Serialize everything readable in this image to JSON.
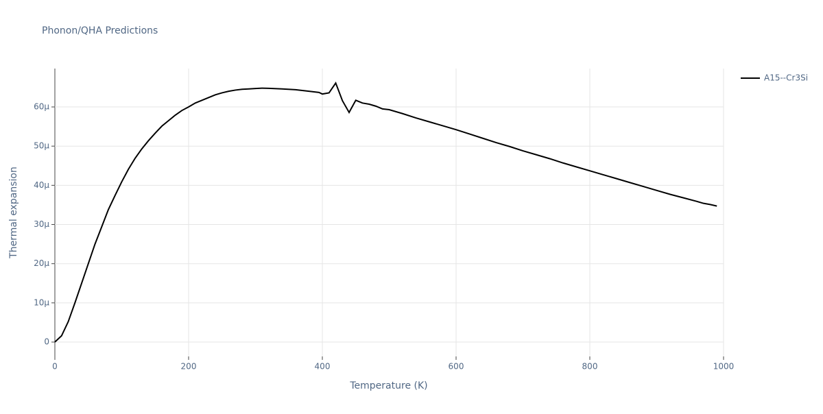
{
  "chart_data": {
    "type": "line",
    "title": "Phonon/QHA Predictions",
    "x_label": "Temperature (K)",
    "y_label": "Thermal expansion",
    "x": [
      0,
      10,
      20,
      30,
      40,
      50,
      60,
      70,
      80,
      90,
      100,
      110,
      120,
      130,
      140,
      150,
      160,
      170,
      180,
      190,
      200,
      210,
      220,
      230,
      240,
      250,
      260,
      270,
      280,
      290,
      300,
      310,
      320,
      340,
      360,
      380,
      395,
      400,
      410,
      420,
      430,
      440,
      450,
      460,
      470,
      480,
      490,
      500,
      520,
      540,
      560,
      580,
      600,
      620,
      640,
      660,
      680,
      700,
      720,
      740,
      760,
      780,
      800,
      820,
      840,
      860,
      880,
      900,
      920,
      940,
      960,
      970,
      980,
      990
    ],
    "series": [
      {
        "name": "A15--Cr3Si",
        "color": "#000000",
        "values": [
          0,
          1.6e-06,
          5.2e-06,
          1e-05,
          1.5e-05,
          2e-05,
          2.5e-05,
          2.94e-05,
          3.38e-05,
          3.74e-05,
          4.09e-05,
          4.41e-05,
          4.69e-05,
          4.93e-05,
          5.14e-05,
          5.33e-05,
          5.51e-05,
          5.65e-05,
          5.79e-05,
          5.91e-05,
          6e-05,
          6.1e-05,
          6.17e-05,
          6.24e-05,
          6.31e-05,
          6.36e-05,
          6.4e-05,
          6.43e-05,
          6.45e-05,
          6.46e-05,
          6.47e-05,
          6.48e-05,
          6.475e-05,
          6.46e-05,
          6.44e-05,
          6.4e-05,
          6.37e-05,
          6.33e-05,
          6.36e-05,
          6.61e-05,
          6.16e-05,
          5.86e-05,
          6.17e-05,
          6.1e-05,
          6.07e-05,
          6.02e-05,
          5.95e-05,
          5.93e-05,
          5.83e-05,
          5.72e-05,
          5.62e-05,
          5.52e-05,
          5.42e-05,
          5.31e-05,
          5.2e-05,
          5.09e-05,
          4.99e-05,
          4.88e-05,
          4.78e-05,
          4.68e-05,
          4.57e-05,
          4.47e-05,
          4.37e-05,
          4.27e-05,
          4.17e-05,
          4.07e-05,
          3.97e-05,
          3.87e-05,
          3.77e-05,
          3.68e-05,
          3.59e-05,
          3.54e-05,
          3.51e-05,
          3.47e-05
        ]
      }
    ],
    "xlim": [
      0,
      1000
    ],
    "xticks": [
      0,
      200,
      400,
      600,
      800,
      1000
    ],
    "ylim": [
      -3.67e-06,
      6.98e-05
    ],
    "yticks": [
      0,
      {
        "value": 1e-05,
        "label": "10µ"
      },
      {
        "value": 2e-05,
        "label": "20µ"
      },
      {
        "value": 3e-05,
        "label": "30µ"
      },
      {
        "value": 4e-05,
        "label": "40µ"
      },
      {
        "value": 5e-05,
        "label": "50µ"
      },
      {
        "value": 6e-05,
        "label": "60µ"
      }
    ],
    "grid": true,
    "legend": "right"
  }
}
